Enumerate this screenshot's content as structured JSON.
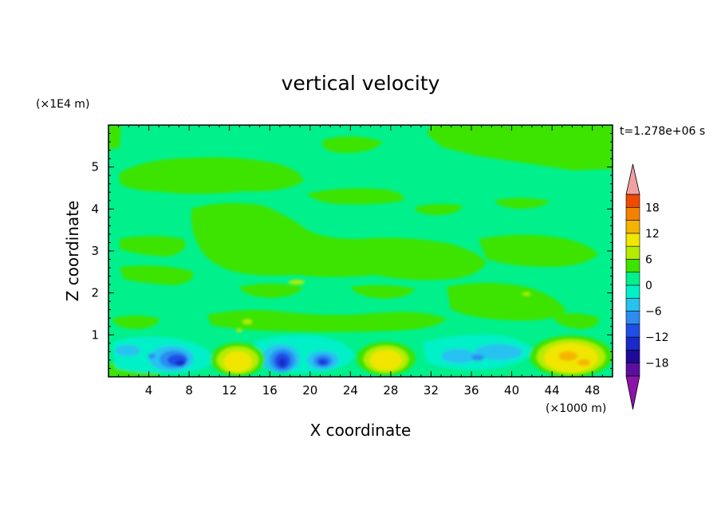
{
  "chart_data": {
    "type": "heatmap",
    "title": "vertical velocity",
    "xlabel": "X coordinate",
    "ylabel": "Z coordinate",
    "x_unit": "(×1000 m)",
    "y_unit": "(×1E4 m)",
    "time_label": "t=1.278e+06 s",
    "xlim": [
      0,
      50
    ],
    "ylim": [
      0,
      6
    ],
    "x_ticks": [
      4,
      8,
      12,
      16,
      20,
      24,
      28,
      32,
      36,
      40,
      44,
      48
    ],
    "x_tick_labels": [
      "4",
      "8",
      "12",
      "16",
      "20",
      "24",
      "28",
      "32",
      "36",
      "40",
      "44",
      "48"
    ],
    "y_ticks": [
      1,
      2,
      3,
      4,
      5
    ],
    "y_tick_labels": [
      "1",
      "2",
      "3",
      "4",
      "5"
    ],
    "colorbar": {
      "levels": [
        -21,
        -18,
        -15,
        -12,
        -9,
        -6,
        -3,
        0,
        3,
        6,
        9,
        12,
        15,
        18,
        21
      ],
      "tick_values": [
        -18,
        -12,
        -6,
        0,
        6,
        12,
        18
      ],
      "tick_labels": [
        "−18",
        "−12",
        "−6",
        "0",
        "6",
        "12",
        "18"
      ],
      "colors": [
        "#5a0fa0",
        "#1e0a96",
        "#1a2ac8",
        "#1f4fe8",
        "#2c8cf0",
        "#27c2f0",
        "#00f0c8",
        "#00f08c",
        "#3ce400",
        "#b4ec00",
        "#f0e600",
        "#f5b400",
        "#f28200",
        "#f04a00",
        "#e61414"
      ],
      "under_color": "#8c14a8",
      "over_color": "#f0a0a0"
    },
    "features": [
      {
        "x": 6.5,
        "z": 0.4,
        "value": -12
      },
      {
        "x": 13,
        "z": 0.4,
        "value": 9
      },
      {
        "x": 17.5,
        "z": 0.4,
        "value": -12
      },
      {
        "x": 21.5,
        "z": 0.35,
        "value": -12
      },
      {
        "x": 28,
        "z": 0.45,
        "value": 9
      },
      {
        "x": 36.5,
        "z": 0.45,
        "value": -6
      },
      {
        "x": 46,
        "z": 0.5,
        "value": 9
      }
    ]
  }
}
